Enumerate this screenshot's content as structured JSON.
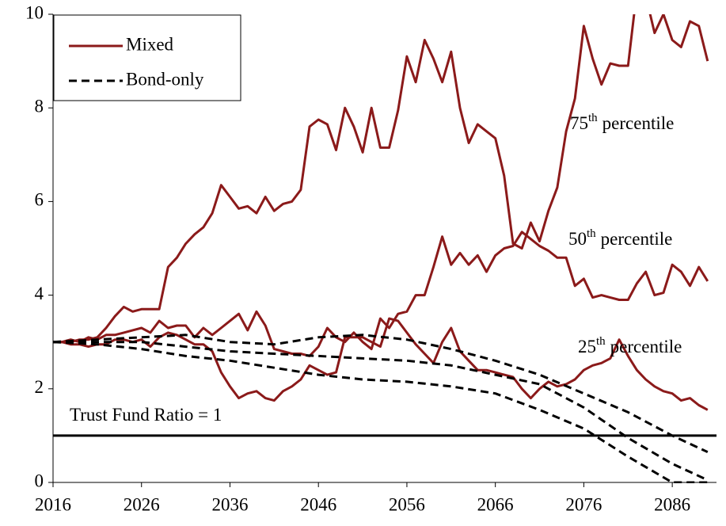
{
  "chart_data": {
    "type": "line",
    "x": [
      2016,
      2017,
      2018,
      2019,
      2020,
      2021,
      2022,
      2023,
      2024,
      2025,
      2026,
      2027,
      2028,
      2029,
      2030,
      2031,
      2032,
      2033,
      2034,
      2035,
      2036,
      2037,
      2038,
      2039,
      2040,
      2041,
      2042,
      2043,
      2044,
      2045,
      2046,
      2047,
      2048,
      2049,
      2050,
      2051,
      2052,
      2053,
      2054,
      2055,
      2056,
      2057,
      2058,
      2059,
      2060,
      2061,
      2062,
      2063,
      2064,
      2065,
      2066,
      2067,
      2068,
      2069,
      2070,
      2071,
      2072,
      2073,
      2074,
      2075,
      2076,
      2077,
      2078,
      2079,
      2080,
      2081,
      2082,
      2083,
      2084,
      2085,
      2086,
      2087,
      2088,
      2089,
      2090
    ],
    "xlim": [
      2016,
      2091
    ],
    "xticks": [
      2016,
      2026,
      2036,
      2046,
      2056,
      2066,
      2076,
      2086
    ],
    "ylim": [
      0,
      10
    ],
    "yticks": [
      0,
      2,
      4,
      6,
      8,
      10
    ],
    "legend": "upper left",
    "series": [
      {
        "name": "Mixed",
        "color": "#8b1a1a",
        "dash": false,
        "lines": [
          {
            "values": [
              3.0,
              3.0,
              3.0,
              3.05,
              3.05,
              3.1,
              3.3,
              3.55,
              3.75,
              3.65,
              3.7,
              3.7,
              3.7,
              4.6,
              4.8,
              5.1,
              5.3,
              5.45,
              5.75,
              6.35,
              6.1,
              5.85,
              5.9,
              5.75,
              6.1,
              5.8,
              5.95,
              6.0,
              6.25,
              7.6,
              7.75,
              7.65,
              7.1,
              8.0,
              7.6,
              7.05,
              8.0,
              7.15,
              7.15,
              7.95,
              9.1,
              8.55,
              9.45,
              9.05,
              8.55,
              9.2,
              8.0,
              7.25,
              7.65,
              7.5,
              7.35,
              6.55,
              5.1,
              5.0,
              5.55,
              5.15,
              5.8,
              6.3,
              7.5,
              8.2,
              9.75,
              9.05,
              8.5,
              8.95,
              8.9,
              8.9,
              10.5,
              10.4,
              9.6,
              10.0,
              9.45,
              9.3,
              9.85,
              9.75,
              9.0
            ]
          },
          {
            "values": [
              3.0,
              3.0,
              3.05,
              3.0,
              3.1,
              3.05,
              3.15,
              3.15,
              3.2,
              3.25,
              3.3,
              3.2,
              3.45,
              3.3,
              3.35,
              3.35,
              3.1,
              3.3,
              3.15,
              3.3,
              3.45,
              3.6,
              3.25,
              3.65,
              3.35,
              2.85,
              2.8,
              2.75,
              2.75,
              2.7,
              2.9,
              3.3,
              3.1,
              3.0,
              3.2,
              3.0,
              2.85,
              3.5,
              3.3,
              3.6,
              3.65,
              4.0,
              4.0,
              4.6,
              5.25,
              4.65,
              4.9,
              4.65,
              4.85,
              4.5,
              4.85,
              5.0,
              5.05,
              5.35,
              5.2,
              5.05,
              4.95,
              4.8,
              4.8,
              4.2,
              4.35,
              3.95,
              4.0,
              3.95,
              3.9,
              3.9,
              4.25,
              4.5,
              4.0,
              4.05,
              4.65,
              4.5,
              4.2,
              4.6,
              4.3
            ]
          },
          {
            "values": [
              3.0,
              3.0,
              2.95,
              2.95,
              2.9,
              2.95,
              2.95,
              3.05,
              3.05,
              3.0,
              3.05,
              2.9,
              3.1,
              3.2,
              3.15,
              3.05,
              2.95,
              2.95,
              2.8,
              2.35,
              2.05,
              1.8,
              1.9,
              1.95,
              1.8,
              1.75,
              1.95,
              2.05,
              2.2,
              2.5,
              2.4,
              2.3,
              2.35,
              3.1,
              3.1,
              3.1,
              3.0,
              2.9,
              3.5,
              3.45,
              3.2,
              2.95,
              2.75,
              2.55,
              3.0,
              3.3,
              2.8,
              2.6,
              2.4,
              2.4,
              2.35,
              2.3,
              2.25,
              2.0,
              1.8,
              2.0,
              2.15,
              2.05,
              2.1,
              2.2,
              2.4,
              2.5,
              2.55,
              2.65,
              3.05,
              2.7,
              2.4,
              2.2,
              2.05,
              1.95,
              1.9,
              1.75,
              1.8,
              1.65,
              1.55
            ]
          }
        ]
      },
      {
        "name": "Bond-only",
        "color": "#000000",
        "dash": true,
        "lines": [
          {
            "x": [
              2016,
              2021,
              2026,
              2031,
              2036,
              2041,
              2046,
              2051,
              2056,
              2061,
              2066,
              2071,
              2076,
              2081,
              2086,
              2090
            ],
            "values": [
              3.0,
              3.05,
              3.1,
              3.15,
              3.0,
              2.95,
              3.1,
              3.15,
              3.05,
              2.85,
              2.6,
              2.3,
              1.9,
              1.5,
              1.0,
              0.65
            ]
          },
          {
            "x": [
              2016,
              2021,
              2026,
              2031,
              2036,
              2041,
              2046,
              2051,
              2056,
              2061,
              2066,
              2071,
              2076,
              2081,
              2086,
              2090
            ],
            "values": [
              3.0,
              3.0,
              3.0,
              2.9,
              2.8,
              2.75,
              2.7,
              2.65,
              2.6,
              2.5,
              2.3,
              2.1,
              1.6,
              0.95,
              0.4,
              0.05
            ]
          },
          {
            "x": [
              2016,
              2021,
              2026,
              2031,
              2036,
              2041,
              2046,
              2051,
              2056,
              2061,
              2066,
              2071,
              2076,
              2081,
              2086,
              2090
            ],
            "values": [
              3.0,
              2.95,
              2.85,
              2.7,
              2.6,
              2.45,
              2.3,
              2.2,
              2.15,
              2.05,
              1.9,
              1.55,
              1.15,
              0.55,
              0.0,
              0.0
            ]
          }
        ]
      }
    ],
    "annotations": [
      {
        "number": "75",
        "sup": "th",
        "text": "percentile"
      },
      {
        "number": "50",
        "sup": "th",
        "text": "percentile"
      },
      {
        "number": "25",
        "sup": "th",
        "text": "percentile"
      }
    ],
    "reference_line": {
      "y": 1,
      "label": "Trust Fund Ratio = 1",
      "color": "#000000"
    }
  }
}
